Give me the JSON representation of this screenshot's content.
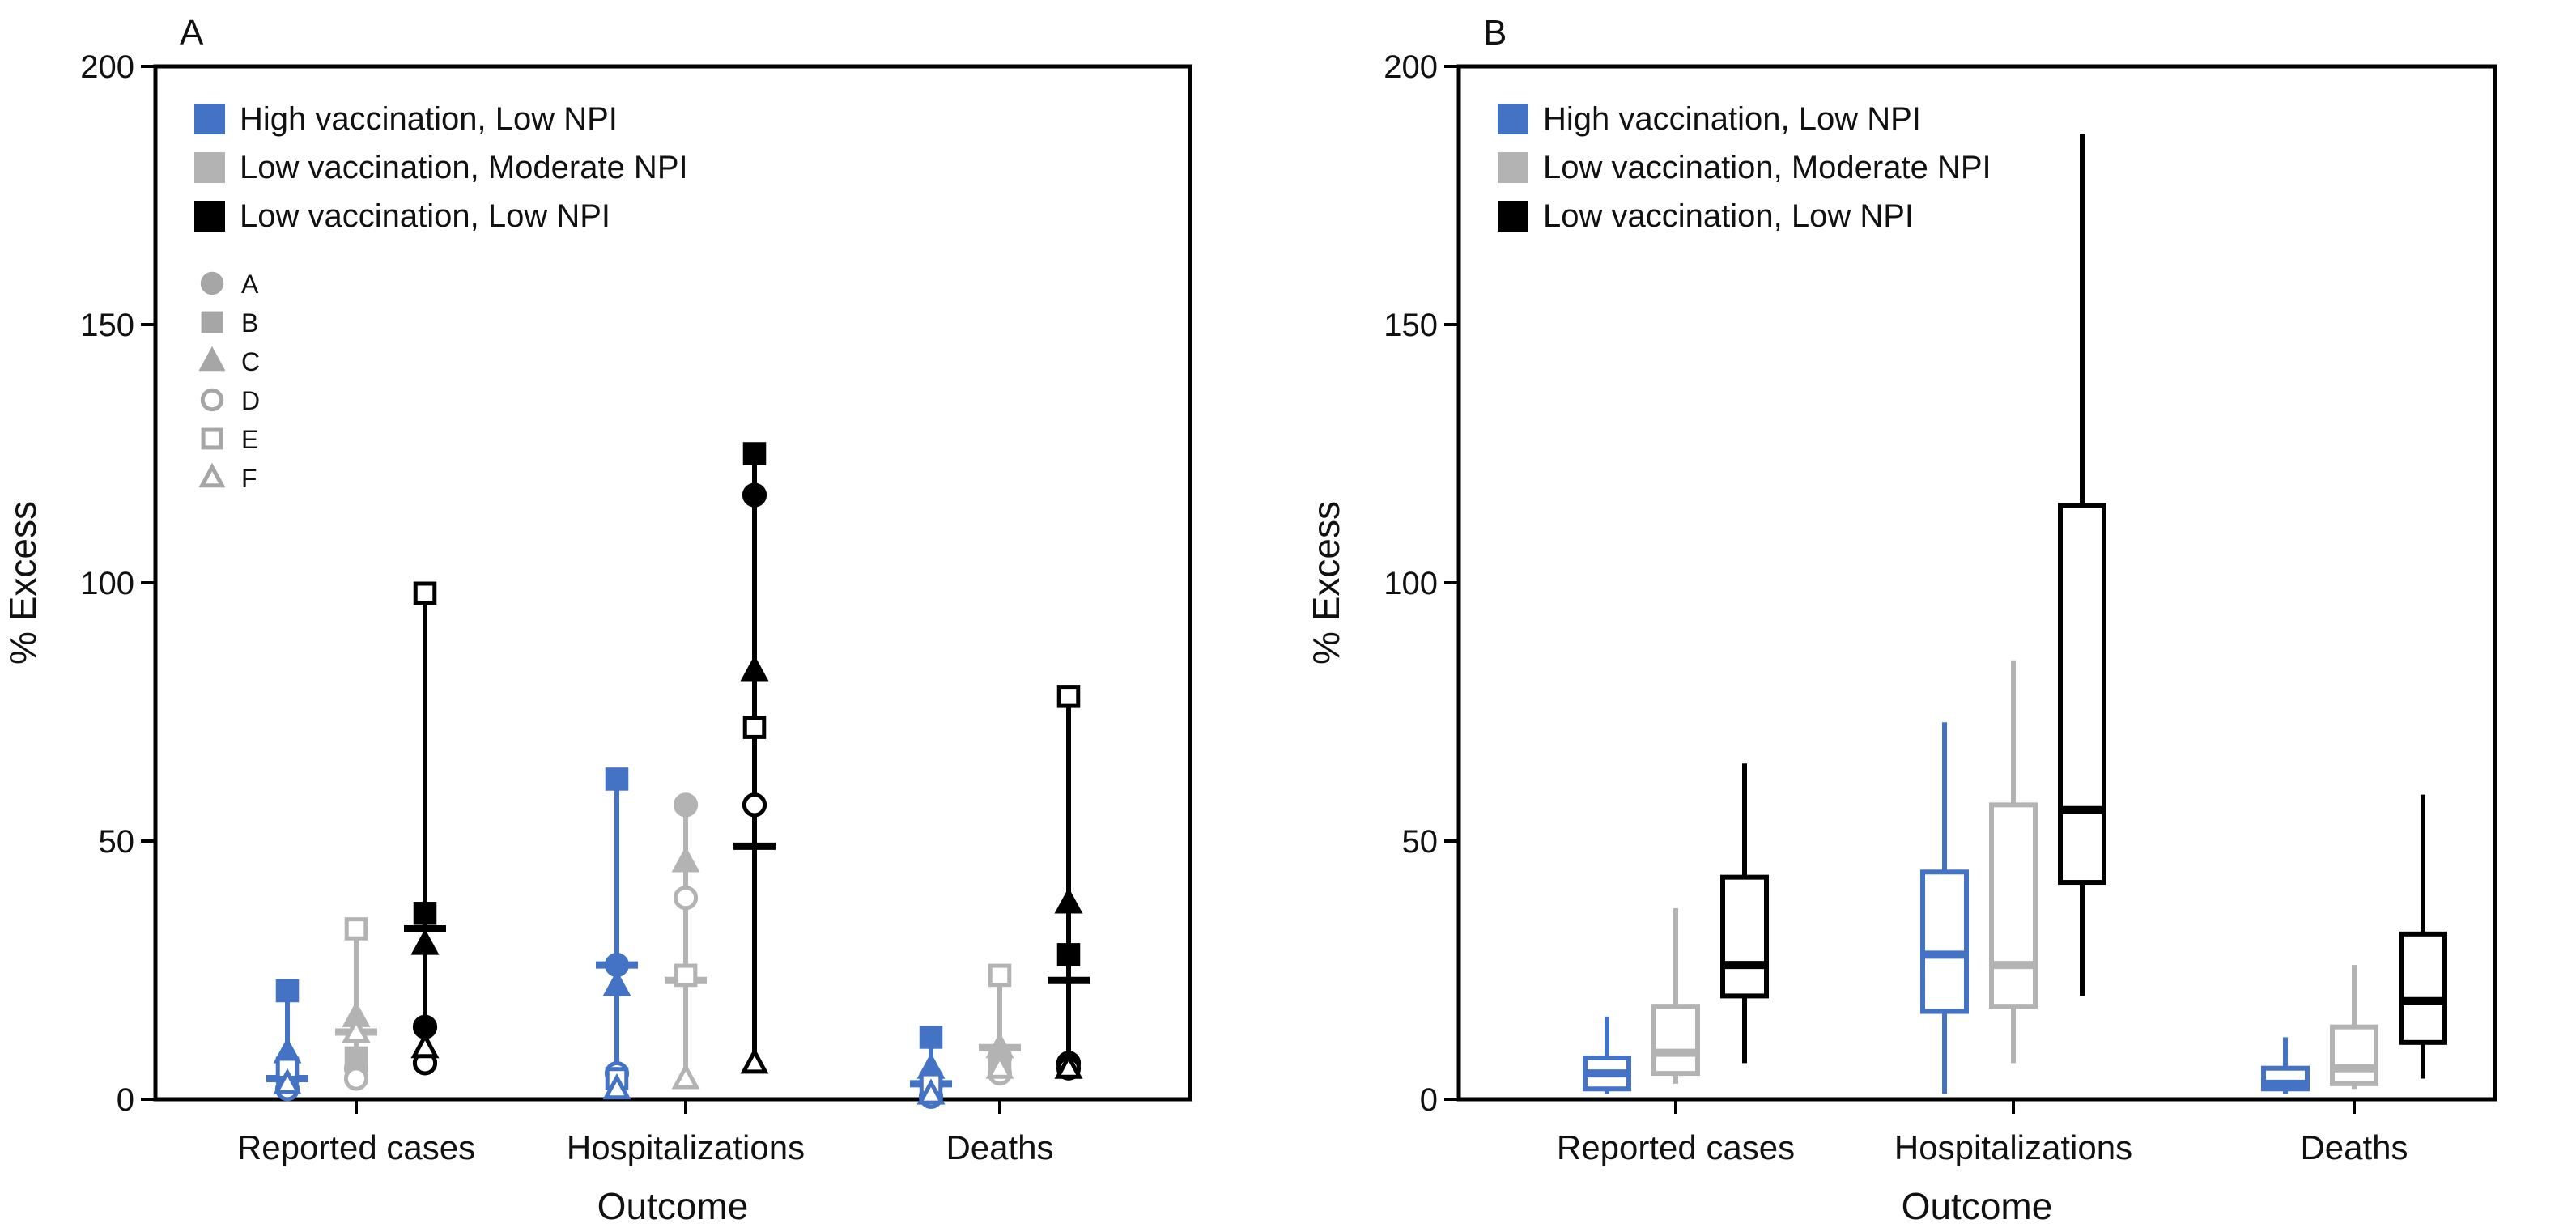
{
  "colors": {
    "high_vax_low_npi": "#4472c4",
    "low_vax_mod_npi": "#b3b3b3",
    "low_vax_low_npi": "#000000",
    "axis": "#000000"
  },
  "legend_series": [
    {
      "name": "High vaccination, Low NPI",
      "color": "#4472c4"
    },
    {
      "name": "Low vaccination, Moderate NPI",
      "color": "#b3b3b3"
    },
    {
      "name": "Low vaccination, Low NPI",
      "color": "#000000"
    }
  ],
  "chart_data": [
    {
      "type": "scatter",
      "panel_label": "A",
      "xlabel": "Outcome",
      "ylabel": "% Excess",
      "ylim": [
        0,
        200
      ],
      "yticks": [
        0,
        50,
        100,
        150,
        200
      ],
      "categories": [
        "Reported cases",
        "Hospitalizations",
        "Deaths"
      ],
      "grid": false,
      "legend_position": "top-left",
      "scenario_legend": [
        {
          "label": "A",
          "shape": "circle",
          "filled": true
        },
        {
          "label": "B",
          "shape": "square",
          "filled": true
        },
        {
          "label": "C",
          "shape": "triangle",
          "filled": true
        },
        {
          "label": "D",
          "shape": "circle",
          "filled": false
        },
        {
          "label": "E",
          "shape": "square",
          "filled": false
        },
        {
          "label": "F",
          "shape": "triangle",
          "filled": false
        }
      ],
      "series": [
        {
          "name": "High vaccination, Low NPI",
          "mean": [
            4,
            26,
            3
          ],
          "points": [
            {
              "A": 4,
              "B": 21,
              "C": 9,
              "D": 2,
              "E": 6,
              "F": 3
            },
            {
              "A": 26,
              "B": 62,
              "C": 22,
              "D": 5,
              "E": 4,
              "F": 2
            },
            {
              "A": 3,
              "B": 12,
              "C": 6,
              "D": 0.5,
              "E": 3,
              "F": 1
            }
          ]
        },
        {
          "name": "Low vaccination, Moderate NPI",
          "mean": [
            13,
            23,
            10
          ],
          "points": [
            {
              "A": 6,
              "B": 8,
              "C": 16,
              "D": 4,
              "E": 33,
              "F": 13
            },
            {
              "A": 57,
              "B": 24,
              "C": 46,
              "D": 39,
              "E": 24,
              "F": 4
            },
            {
              "A": 8,
              "B": 7,
              "C": 10,
              "D": 5,
              "E": 24,
              "F": 6
            }
          ]
        },
        {
          "name": "Low vaccination, Low NPI",
          "mean": [
            33,
            49,
            23
          ],
          "points": [
            {
              "A": 14,
              "B": 36,
              "C": 30,
              "D": 7,
              "E": 98,
              "F": 10
            },
            {
              "A": 117,
              "B": 125,
              "C": 83,
              "D": 57,
              "E": 72,
              "F": 7
            },
            {
              "A": 7,
              "B": 28,
              "C": 38,
              "D": 6,
              "E": 78,
              "F": 6
            }
          ]
        }
      ]
    },
    {
      "type": "box",
      "panel_label": "B",
      "xlabel": "Outcome",
      "ylabel": "% Excess",
      "ylim": [
        0,
        200
      ],
      "yticks": [
        0,
        50,
        100,
        150,
        200
      ],
      "categories": [
        "Reported cases",
        "Hospitalizations",
        "Deaths"
      ],
      "grid": false,
      "legend_position": "top-left",
      "series": [
        {
          "name": "High vaccination, Low NPI",
          "boxes": [
            {
              "min": 1,
              "q1": 2,
              "median": 5,
              "q3": 8,
              "max": 16
            },
            {
              "min": 1,
              "q1": 17,
              "median": 28,
              "q3": 44,
              "max": 73
            },
            {
              "min": 1,
              "q1": 2,
              "median": 3,
              "q3": 6,
              "max": 12
            }
          ]
        },
        {
          "name": "Low vaccination, Moderate NPI",
          "boxes": [
            {
              "min": 3,
              "q1": 5,
              "median": 9,
              "q3": 18,
              "max": 37
            },
            {
              "min": 7,
              "q1": 18,
              "median": 26,
              "q3": 57,
              "max": 85
            },
            {
              "min": 2,
              "q1": 3,
              "median": 6,
              "q3": 14,
              "max": 26
            }
          ]
        },
        {
          "name": "Low vaccination, Low NPI",
          "boxes": [
            {
              "min": 7,
              "q1": 20,
              "median": 26,
              "q3": 43,
              "max": 65
            },
            {
              "min": 20,
              "q1": 42,
              "median": 56,
              "q3": 115,
              "max": 187
            },
            {
              "min": 4,
              "q1": 11,
              "median": 19,
              "q3": 32,
              "max": 59
            }
          ]
        }
      ]
    }
  ]
}
